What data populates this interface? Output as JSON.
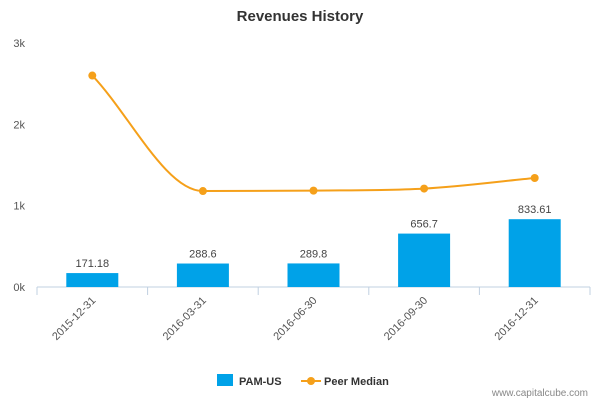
{
  "chart_data": {
    "type": "bar",
    "title": "Revenues History",
    "categories": [
      "2015-12-31",
      "2016-03-31",
      "2016-06-30",
      "2016-09-30",
      "2016-12-31"
    ],
    "series": [
      {
        "name": "PAM-US",
        "type": "bar",
        "values": [
          171.18,
          288.6,
          289.8,
          656.7,
          833.61
        ],
        "labels": [
          "171.18",
          "288.6",
          "289.8",
          "656.7",
          "833.61"
        ],
        "color": "#00a2e8"
      },
      {
        "name": "Peer Median",
        "type": "line",
        "values": [
          2600,
          1180,
          1185,
          1210,
          1340
        ],
        "color": "#f5a01a"
      }
    ],
    "yticks": [
      {
        "value": 0,
        "label": "0k"
      },
      {
        "value": 1000,
        "label": "1k"
      },
      {
        "value": 2000,
        "label": "2k"
      },
      {
        "value": 3000,
        "label": "3k"
      }
    ],
    "ylim": [
      0,
      3000
    ],
    "grid": false,
    "legend": "bottom-center"
  },
  "credit": "www.capitalcube.com"
}
